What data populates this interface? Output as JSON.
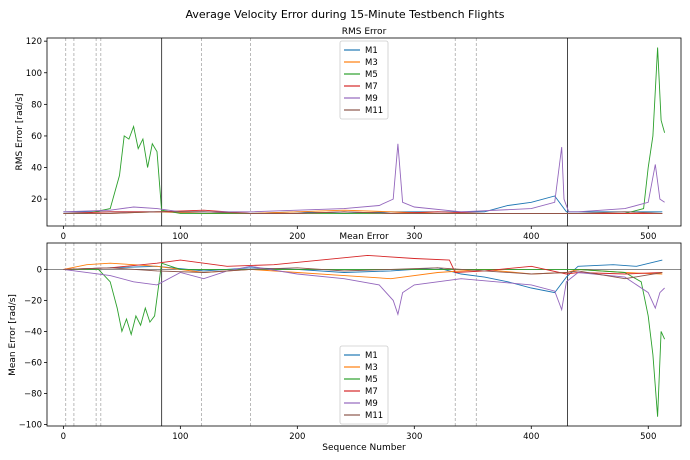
{
  "figure": {
    "title": "Average Velocity Error during 15-Minute Testbench Flights",
    "xlabel": "Sequence Number"
  },
  "chart_data": [
    {
      "type": "line",
      "title": "RMS Error",
      "ylabel": "RMS Error [rad/s]",
      "xlim": [
        -14,
        528
      ],
      "ylim": [
        3,
        122
      ],
      "xticks": [
        "0",
        "100",
        "200",
        "300",
        "400",
        "500"
      ],
      "yticks": [
        "20",
        "40",
        "60",
        "80",
        "100",
        "120"
      ],
      "legend": "upper-center",
      "grid": false,
      "vlines_dashed": [
        2,
        9,
        28,
        32,
        118,
        160,
        335,
        353
      ],
      "vlines_solid": [
        84,
        431
      ],
      "series": [
        {
          "name": "M1",
          "color": "#1f77b4",
          "x": [
            0,
            40,
            80,
            120,
            160,
            200,
            240,
            280,
            320,
            360,
            380,
            400,
            420,
            430,
            440,
            480,
            512
          ],
          "y": [
            12,
            12,
            12,
            12,
            11,
            12,
            11,
            12,
            12,
            12,
            16,
            18,
            22,
            12,
            12,
            12,
            12
          ]
        },
        {
          "name": "M3",
          "color": "#ff7f0e",
          "x": [
            0,
            40,
            80,
            120,
            160,
            200,
            240,
            280,
            320,
            360,
            400,
            430,
            440,
            480,
            512
          ],
          "y": [
            11,
            11,
            12,
            11,
            11,
            12,
            13,
            12,
            11,
            11,
            11,
            11,
            11,
            11,
            11
          ]
        },
        {
          "name": "M5",
          "color": "#2ca02c",
          "x": [
            0,
            20,
            40,
            48,
            52,
            56,
            60,
            64,
            68,
            72,
            76,
            80,
            84,
            100,
            200,
            300,
            400,
            430,
            440,
            480,
            496,
            500,
            504,
            508,
            511,
            514
          ],
          "y": [
            11,
            11,
            14,
            35,
            60,
            58,
            66,
            52,
            58,
            40,
            55,
            50,
            13,
            11,
            11,
            11,
            11,
            11,
            11,
            11,
            14,
            40,
            60,
            116,
            70,
            62
          ]
        },
        {
          "name": "M7",
          "color": "#d62728",
          "x": [
            0,
            40,
            80,
            120,
            160,
            200,
            240,
            280,
            320,
            360,
            400,
            430,
            440,
            480,
            512
          ],
          "y": [
            11,
            12,
            12,
            13,
            11,
            11,
            12,
            11,
            12,
            11,
            11,
            11,
            11,
            11,
            11
          ]
        },
        {
          "name": "M9",
          "color": "#9467bd",
          "x": [
            0,
            40,
            60,
            80,
            100,
            120,
            160,
            200,
            240,
            270,
            282,
            286,
            290,
            300,
            340,
            400,
            420,
            426,
            428,
            432,
            440,
            480,
            500,
            506,
            510,
            514
          ],
          "y": [
            12,
            13,
            15,
            14,
            12,
            12,
            12,
            13,
            14,
            16,
            20,
            55,
            18,
            15,
            12,
            14,
            18,
            53,
            20,
            12,
            12,
            14,
            18,
            42,
            20,
            18
          ]
        },
        {
          "name": "M11",
          "color": "#8c564b",
          "x": [
            0,
            40,
            80,
            120,
            160,
            200,
            240,
            280,
            320,
            360,
            400,
            430,
            440,
            480,
            512
          ],
          "y": [
            11,
            11,
            12,
            12,
            11,
            11,
            12,
            11,
            11,
            11,
            11,
            11,
            11,
            12,
            11
          ]
        }
      ]
    },
    {
      "type": "line",
      "title": "Mean Error",
      "ylabel": "Mean Error [rad/s]",
      "xlim": [
        -14,
        528
      ],
      "ylim": [
        -101,
        17
      ],
      "xticks": [
        "0",
        "100",
        "200",
        "300",
        "400",
        "500"
      ],
      "yticks": [
        "0",
        "−20",
        "−40",
        "−60",
        "−80",
        "−100"
      ],
      "legend": "lower-center",
      "grid": false,
      "hline": 0,
      "vlines_dashed": [
        2,
        9,
        28,
        32,
        118,
        160,
        335,
        353
      ],
      "vlines_solid": [
        84,
        431
      ],
      "series": [
        {
          "name": "M1",
          "color": "#1f77b4",
          "x": [
            0,
            40,
            80,
            120,
            160,
            200,
            240,
            280,
            320,
            340,
            360,
            380,
            400,
            420,
            430,
            440,
            470,
            490,
            512
          ],
          "y": [
            0,
            1,
            2,
            -1,
            1,
            0,
            -2,
            -1,
            1,
            -3,
            -5,
            -8,
            -12,
            -15,
            -5,
            2,
            3,
            2,
            6
          ]
        },
        {
          "name": "M3",
          "color": "#ff7f0e",
          "x": [
            0,
            20,
            40,
            60,
            80,
            100,
            120,
            160,
            200,
            240,
            280,
            320,
            360,
            400,
            430,
            440,
            480,
            512
          ],
          "y": [
            0,
            3,
            4,
            3,
            2,
            0,
            -2,
            0,
            -2,
            -4,
            -6,
            -2,
            0,
            -3,
            -2,
            0,
            -2,
            -3
          ]
        },
        {
          "name": "M5",
          "color": "#2ca02c",
          "x": [
            0,
            30,
            40,
            46,
            50,
            54,
            58,
            62,
            66,
            70,
            74,
            78,
            84,
            100,
            200,
            300,
            400,
            430,
            440,
            480,
            494,
            500,
            504,
            508,
            511,
            514
          ],
          "y": [
            0,
            0,
            -8,
            -25,
            -40,
            -32,
            -42,
            -30,
            -36,
            -25,
            -34,
            -30,
            4,
            0,
            0,
            0,
            0,
            0,
            0,
            -2,
            -8,
            -30,
            -55,
            -95,
            -40,
            -45
          ]
        },
        {
          "name": "M7",
          "color": "#d62728",
          "x": [
            0,
            40,
            80,
            100,
            140,
            180,
            220,
            260,
            300,
            330,
            335,
            360,
            400,
            430,
            440,
            480,
            512
          ],
          "y": [
            0,
            1,
            4,
            6,
            2,
            3,
            6,
            9,
            7,
            6,
            -2,
            -1,
            2,
            -3,
            -2,
            -3,
            -2
          ]
        },
        {
          "name": "M9",
          "color": "#9467bd",
          "x": [
            0,
            40,
            60,
            80,
            100,
            120,
            140,
            160,
            200,
            240,
            270,
            282,
            286,
            290,
            300,
            340,
            400,
            420,
            426,
            430,
            440,
            480,
            500,
            506,
            510,
            514
          ],
          "y": [
            0,
            -4,
            -8,
            -10,
            -2,
            -6,
            -1,
            2,
            -3,
            -6,
            -10,
            -20,
            -29,
            -15,
            -10,
            -6,
            -10,
            -14,
            -26,
            -8,
            -2,
            -5,
            -15,
            -25,
            -15,
            -12
          ]
        },
        {
          "name": "M11",
          "color": "#8c564b",
          "x": [
            0,
            40,
            80,
            120,
            160,
            200,
            240,
            280,
            320,
            360,
            400,
            430,
            440,
            480,
            512
          ],
          "y": [
            0,
            1,
            -1,
            -2,
            0,
            1,
            -1,
            0,
            1,
            -1,
            -3,
            -2,
            -1,
            -6,
            -2
          ]
        }
      ]
    }
  ]
}
